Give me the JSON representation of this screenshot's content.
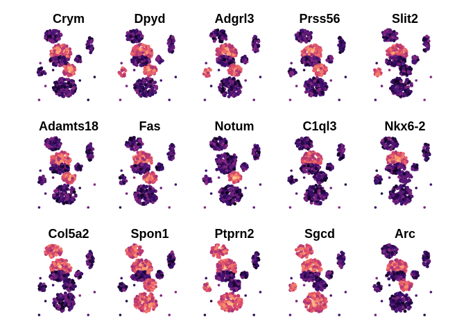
{
  "chart_data": {
    "type": "scatter",
    "description_kind": "small-multiples feature plots (UMAP embedding coloured by gene expression, magma palette)",
    "layout": {
      "rows": 3,
      "cols": 5
    },
    "panels": [
      {
        "title": "Crym",
        "hotspots": [
          "upper-mid",
          "center"
        ]
      },
      {
        "title": "Dpyd",
        "hotspots": [
          "left-islands",
          "upper-mid",
          "center"
        ]
      },
      {
        "title": "Adgrl3",
        "hotspots": [
          "left-islands",
          "upper-mid",
          "center"
        ]
      },
      {
        "title": "Prss56",
        "hotspots": [
          "upper-mid",
          "center"
        ]
      },
      {
        "title": "Slit2",
        "hotspots": [
          "left-islands",
          "upper-mid"
        ]
      },
      {
        "title": "Adamts18",
        "hotspots": [
          "upper-mid",
          "center"
        ]
      },
      {
        "title": "Fas",
        "hotspots": [
          "upper-mid",
          "center"
        ]
      },
      {
        "title": "Notum",
        "hotspots": [
          "center"
        ]
      },
      {
        "title": "C1ql3",
        "hotspots": [
          "upper-mid"
        ]
      },
      {
        "title": "Nkx6-2",
        "hotspots": [
          "upper-mid"
        ]
      },
      {
        "title": "Col5a2",
        "hotspots": [
          "top-left",
          "upper-mid"
        ]
      },
      {
        "title": "Spon1",
        "hotspots": [
          "top-left",
          "upper-mid",
          "center",
          "lower"
        ]
      },
      {
        "title": "Ptprn2",
        "hotspots": [
          "top-left",
          "upper-mid",
          "left-islands",
          "lower"
        ]
      },
      {
        "title": "Sgcd",
        "hotspots": [
          "top-left",
          "upper-mid",
          "left-islands",
          "lower"
        ]
      },
      {
        "title": "Arc",
        "hotspots": [
          "upper-mid",
          "center"
        ]
      }
    ],
    "color_scale": [
      "#000004",
      "#3b0f70",
      "#8c2981",
      "#de4968",
      "#fe9f6d",
      "#fcfdbf"
    ],
    "axes": "hidden",
    "grid": false,
    "legend": "none"
  }
}
